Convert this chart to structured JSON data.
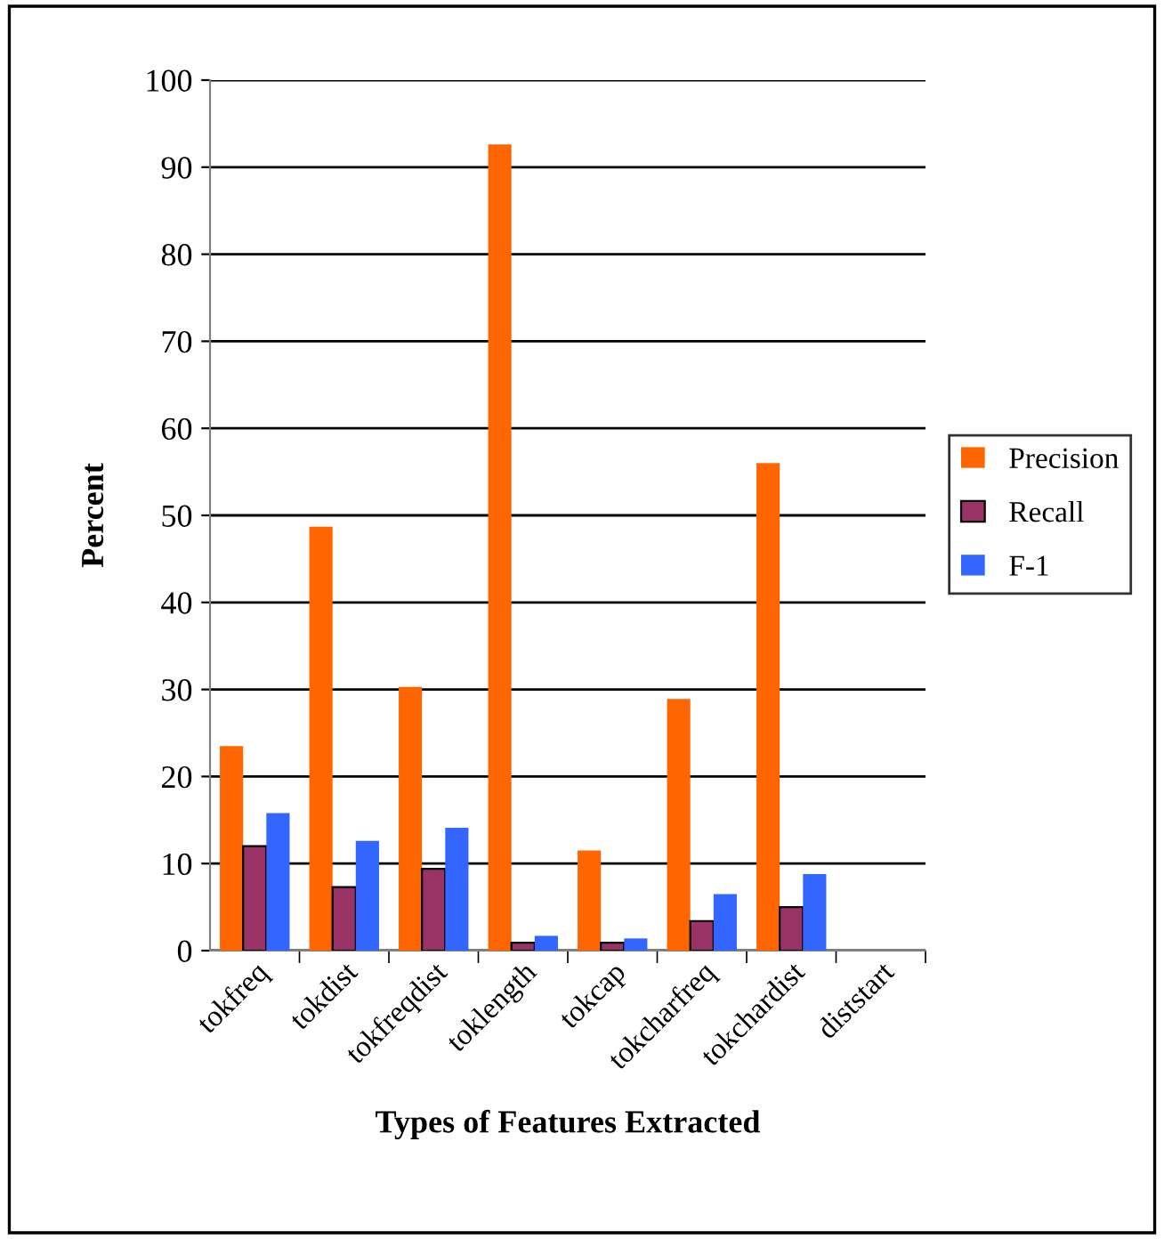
{
  "chart_data": {
    "type": "bar",
    "xlabel": "Types of Features Extracted",
    "ylabel": "Percent",
    "categories": [
      "tokfreq",
      "tokdist",
      "tokfreqdist",
      "toklength",
      "tokcap",
      "tokcharfreq",
      "tokchardist",
      "diststart"
    ],
    "series": [
      {
        "name": "Precision",
        "color": "#ff6600",
        "values": [
          23.5,
          48.7,
          30.3,
          92.6,
          11.5,
          28.9,
          56.0,
          null
        ]
      },
      {
        "name": "Recall",
        "color": "#993366",
        "values": [
          12.0,
          7.3,
          9.4,
          0.9,
          0.9,
          3.4,
          5.0,
          null
        ]
      },
      {
        "name": "F-1",
        "color": "#3366ff",
        "values": [
          15.8,
          12.6,
          14.1,
          1.7,
          1.4,
          6.5,
          8.8,
          null
        ]
      }
    ],
    "ylim": [
      0,
      100
    ],
    "yticks": [
      0,
      10,
      20,
      30,
      40,
      50,
      60,
      70,
      80,
      90,
      100
    ],
    "grid": "y",
    "legend": "right"
  }
}
